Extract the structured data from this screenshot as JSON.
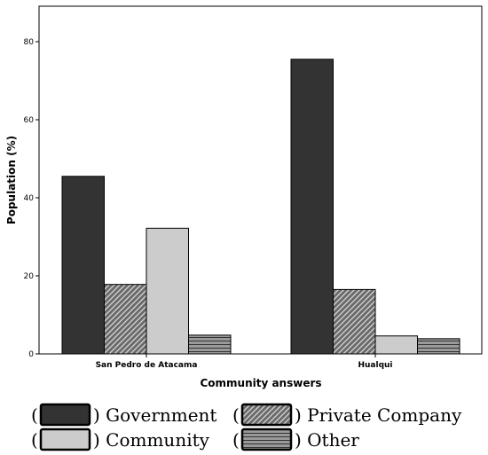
{
  "chart_data": {
    "type": "bar",
    "categories": [
      "San Pedro de Atacama",
      "Hualqui"
    ],
    "series": [
      {
        "name": "Government",
        "values": [
          45.5,
          75.5
        ],
        "fill": "#333333",
        "pattern": "solid"
      },
      {
        "name": "Private Company",
        "values": [
          17.8,
          16.5
        ],
        "fill": "#999999",
        "pattern": "diagonal"
      },
      {
        "name": "Community",
        "values": [
          32.2,
          4.6
        ],
        "fill": "#cccccc",
        "pattern": "solid"
      },
      {
        "name": "Other",
        "values": [
          4.8,
          3.9
        ],
        "fill": "#999999",
        "pattern": "horizontal"
      }
    ],
    "xlabel": "Community answers",
    "ylabel": "Population (%)",
    "ylim": [
      0,
      80
    ],
    "yticks": [
      0,
      20,
      40,
      60,
      80
    ],
    "grid": false,
    "legend_position": "bottom"
  }
}
